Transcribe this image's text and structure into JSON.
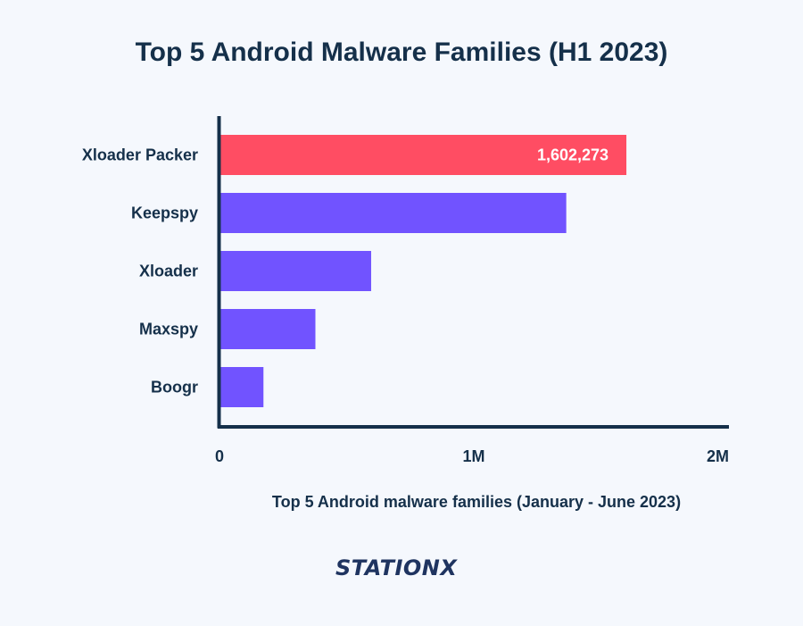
{
  "page": {
    "title": "Top 5 Android Malware Families (H1 2023)",
    "subtitle": "Top 5 Android malware families (January - June 2023)"
  },
  "logo": {
    "text": "STATIONX",
    "color": "#1f3460"
  },
  "colors": {
    "highlight": "#ff4d63",
    "bar": "#7153ff",
    "axis": "#15304a",
    "text": "#15304a",
    "background": "#f5f8fd"
  },
  "chart_data": {
    "type": "bar",
    "orientation": "horizontal",
    "title": "Top 5 Android Malware Families (H1 2023)",
    "xlabel": "Top 5 Android malware families (January - June 2023)",
    "ylabel": "",
    "xlim": [
      0,
      2000000
    ],
    "xticks": [
      {
        "value": 0,
        "label": "0"
      },
      {
        "value": 1000000,
        "label": "1M"
      },
      {
        "value": 2000000,
        "label": "2M"
      }
    ],
    "grid": false,
    "categories": [
      "Xloader Packer",
      "Keepspy",
      "Xloader",
      "Maxspy",
      "Boogr"
    ],
    "values": [
      1602273,
      1365000,
      595000,
      375000,
      170000
    ],
    "data_labels": [
      "1,602,273",
      "",
      "",
      "",
      ""
    ],
    "highlight_index": 0
  }
}
